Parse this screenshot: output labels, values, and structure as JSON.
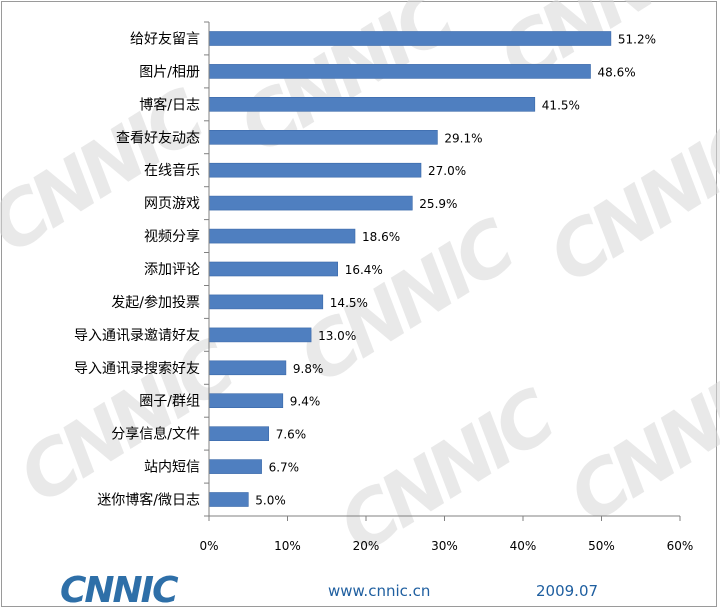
{
  "watermark_text": "CNNIC",
  "footer": {
    "logo": "CNNIC",
    "url": "www.cnnic.cn",
    "date": "2009.07"
  },
  "colors": {
    "bar": "#4f7fc0",
    "bar_edge": "#3a68a8",
    "axis": "#808080"
  },
  "chart_data": {
    "type": "bar",
    "orientation": "horizontal",
    "categories": [
      "给好友留言",
      "图片/相册",
      "博客/日志",
      "查看好友动态",
      "在线音乐",
      "网页游戏",
      "视频分享",
      "添加评论",
      "发起/参加投票",
      "导入通讯录邀请好友",
      "导入通讯录搜索好友",
      "圈子/群组",
      "分享信息/文件",
      "站内短信",
      "迷你博客/微日志"
    ],
    "values": [
      51.2,
      48.6,
      41.5,
      29.1,
      27.0,
      25.9,
      18.6,
      16.4,
      14.5,
      13.0,
      9.8,
      9.4,
      7.6,
      6.7,
      5.0
    ],
    "value_labels": [
      "51.2%",
      "48.6%",
      "41.5%",
      "29.1%",
      "27.0%",
      "25.9%",
      "18.6%",
      "16.4%",
      "14.5%",
      "13.0%",
      "9.8%",
      "9.4%",
      "7.6%",
      "6.7%",
      "5.0%"
    ],
    "xlim": [
      0,
      60
    ],
    "ticks": [
      0,
      10,
      20,
      30,
      40,
      50,
      60
    ],
    "tick_labels": [
      "0%",
      "10%",
      "20%",
      "30%",
      "40%",
      "50%",
      "60%"
    ],
    "grid": false,
    "legend": "none",
    "title": "",
    "xlabel": "",
    "ylabel": ""
  }
}
